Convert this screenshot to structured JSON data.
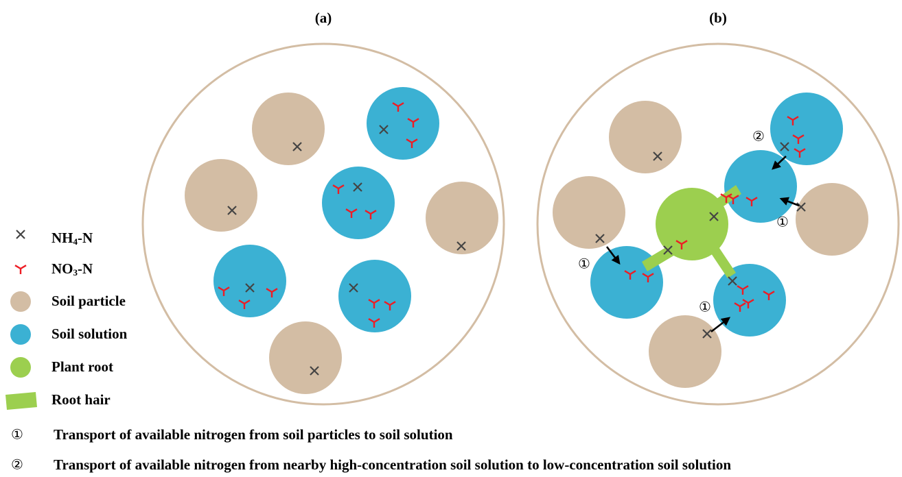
{
  "panels": {
    "a": {
      "title": "(a)"
    },
    "b": {
      "title": "(b)",
      "markers": [
        "②",
        "①",
        "①",
        "①"
      ]
    }
  },
  "legend": {
    "nh4": {
      "base": "NH",
      "sub": "4",
      "suffix": "-N"
    },
    "no3": {
      "base": "NO",
      "sub": "3",
      "suffix": "-N"
    },
    "soil_particle": "Soil particle",
    "soil_solution": "Soil solution",
    "plant_root": "Plant root",
    "root_hair": "Root hair"
  },
  "notes": [
    {
      "marker": "①",
      "text": "Transport of available nitrogen from soil particles to soil solution"
    },
    {
      "marker": "②",
      "text": "Transport of available nitrogen from nearby high-concentration soil solution to low-concentration soil solution"
    }
  ]
}
